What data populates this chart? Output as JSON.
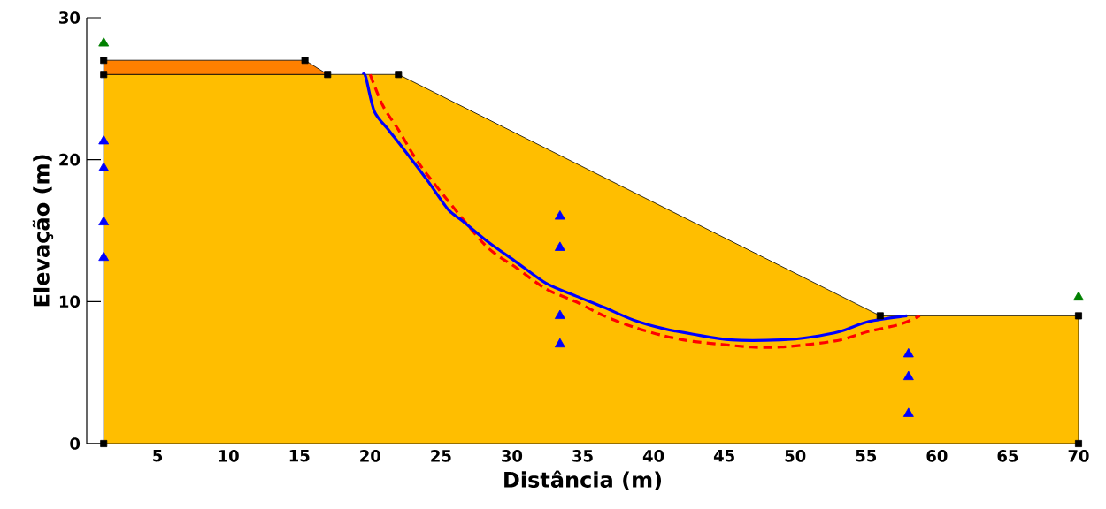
{
  "chart_data": {
    "type": "area",
    "xlabel": "Distância (m)",
    "ylabel": "Elevação (m)",
    "xlim": [
      0,
      70
    ],
    "ylim": [
      0,
      30
    ],
    "xticks": [
      5,
      10,
      15,
      20,
      25,
      30,
      35,
      40,
      45,
      50,
      55,
      60,
      65,
      70
    ],
    "yticks": [
      0,
      10,
      20,
      30
    ],
    "stacked": true,
    "series": [
      {
        "color": "#ffbe00",
        "x": [
          1.2,
          15.4,
          17,
          22,
          56,
          70
        ],
        "values": [
          26,
          26,
          26,
          26,
          9,
          9
        ]
      },
      {
        "color": "#ff8000",
        "x": [
          1.2,
          15.4,
          17
        ],
        "values": [
          1,
          1,
          0
        ]
      },
      {
        "type": "line",
        "color": "#ff0000",
        "line_style": "dashed",
        "x": [
          20.0,
          20.9,
          22.0,
          23.4,
          25.5,
          28.2,
          30.3,
          32.4,
          34.5,
          36.5,
          38.6,
          40.7,
          42.8,
          46.9,
          49.0,
          51.1,
          53.2,
          55.2,
          57.4,
          58.8
        ],
        "values": [
          26.0,
          23.8,
          22.1,
          19.8,
          17.1,
          13.9,
          12.4,
          10.9,
          10.0,
          9.0,
          8.2,
          7.6,
          7.2,
          6.8,
          6.8,
          7.0,
          7.3,
          7.9,
          8.4,
          9.0
        ]
      },
      {
        "type": "line",
        "color": "#0000ff",
        "line_style": "solid",
        "x": [
          19.5,
          19.7,
          20.3,
          21.3,
          22.4,
          24.0,
          25.5,
          26.5,
          28.2,
          30.3,
          32.4,
          34.5,
          36.5,
          38.6,
          40.7,
          42.8,
          45.5,
          49.0,
          51.1,
          53.2,
          55.2,
          57.9
        ],
        "values": [
          26.0,
          25.8,
          23.4,
          22.1,
          20.7,
          18.6,
          16.5,
          15.7,
          14.3,
          12.8,
          11.3,
          10.4,
          9.6,
          8.7,
          8.1,
          7.7,
          7.3,
          7.3,
          7.5,
          7.9,
          8.6,
          9.0
        ]
      },
      {
        "type": "scatter",
        "color": "#0000ff",
        "marker": "triangle",
        "x": [
          1.2,
          1.2,
          1.2,
          1.2,
          33.4,
          33.4,
          33.4,
          33.4,
          58,
          58,
          58
        ],
        "values": [
          21.3,
          19.4,
          15.6,
          13.1,
          16.0,
          13.8,
          9.0,
          7.0,
          6.3,
          4.7,
          2.1
        ]
      },
      {
        "type": "scatter",
        "color": "#000000",
        "marker": "square",
        "x": [
          1.2,
          1.2,
          15.4,
          17,
          22,
          56,
          70,
          70,
          1.2
        ],
        "values": [
          27,
          26,
          27,
          26,
          26,
          9,
          9,
          0,
          0
        ]
      },
      {
        "type": "scatter",
        "color": "#008000",
        "marker": "triangle",
        "x": [
          1.2,
          70
        ],
        "values": [
          28.2,
          10.3
        ]
      }
    ]
  }
}
